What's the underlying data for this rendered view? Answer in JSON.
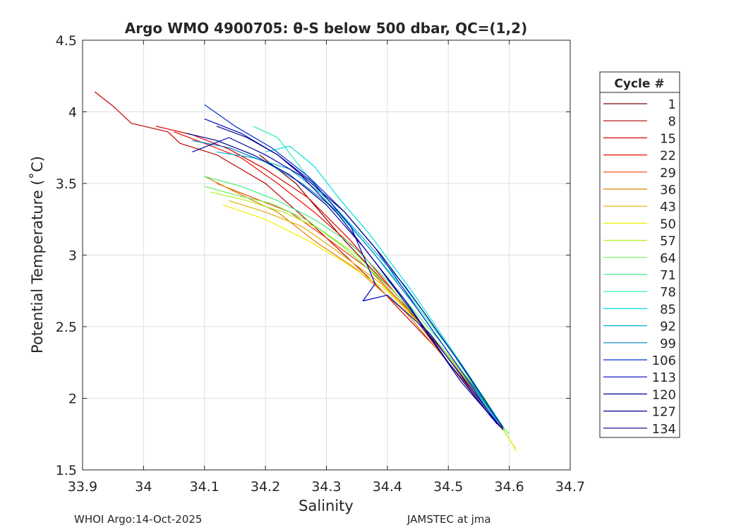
{
  "chart_data": {
    "type": "line",
    "title": "Argo WMO 4900705: θ-S below 500 dbar,  QC=(1,2)",
    "xlabel": "Salinity",
    "ylabel": "Potential Temperature (˚C)",
    "xlim": [
      33.9,
      34.7
    ],
    "ylim": [
      1.5,
      4.5
    ],
    "xticks": [
      33.9,
      34.0,
      34.1,
      34.2,
      34.3,
      34.4,
      34.5,
      34.6,
      34.7
    ],
    "xtick_labels": [
      "33.9",
      "34",
      "34.1",
      "34.2",
      "34.3",
      "34.4",
      "34.5",
      "34.6",
      "34.7"
    ],
    "yticks": [
      1.5,
      2.0,
      2.5,
      3.0,
      3.5,
      4.0,
      4.5
    ],
    "ytick_labels": [
      "1.5",
      "2",
      "2.5",
      "3",
      "3.5",
      "4",
      "4.5"
    ],
    "grid": true,
    "legend_title": "Cycle #",
    "legend_position": "right",
    "legend": [
      {
        "label": "1",
        "color": "#800000"
      },
      {
        "label": "8",
        "color": "#b00000"
      },
      {
        "label": "15",
        "color": "#e00000"
      },
      {
        "label": "22",
        "color": "#f01000"
      },
      {
        "label": "29",
        "color": "#f04000"
      },
      {
        "label": "36",
        "color": "#e08000"
      },
      {
        "label": "43",
        "color": "#e0b000"
      },
      {
        "label": "50",
        "color": "#f0f000"
      },
      {
        "label": "57",
        "color": "#b0f020"
      },
      {
        "label": "64",
        "color": "#70f050"
      },
      {
        "label": "71",
        "color": "#40f080"
      },
      {
        "label": "78",
        "color": "#20f0b0"
      },
      {
        "label": "85",
        "color": "#00e0e0"
      },
      {
        "label": "92",
        "color": "#00b0e0"
      },
      {
        "label": "99",
        "color": "#0080c0"
      },
      {
        "label": "106",
        "color": "#0030d0"
      },
      {
        "label": "113",
        "color": "#0000c0"
      },
      {
        "label": "120",
        "color": "#0000a0"
      },
      {
        "label": "127",
        "color": "#000090"
      },
      {
        "label": "134",
        "color": "#000080"
      }
    ],
    "series": [
      {
        "name": "1",
        "color": "#800000",
        "x": [
          34.19,
          34.25,
          34.33,
          34.42,
          34.5,
          34.57,
          34.59
        ],
        "y": [
          3.7,
          3.5,
          3.1,
          2.7,
          2.25,
          1.87,
          1.78
        ]
      },
      {
        "name": "8",
        "color": "#c00000",
        "x": [
          33.92,
          33.95,
          33.98,
          34.04,
          34.06,
          34.12,
          34.2,
          34.28,
          34.38,
          34.48,
          34.56
        ],
        "y": [
          4.14,
          4.04,
          3.92,
          3.86,
          3.78,
          3.7,
          3.5,
          3.2,
          2.8,
          2.35,
          1.95
        ]
      },
      {
        "name": "15",
        "color": "#e00000",
        "x": [
          34.02,
          34.08,
          34.14,
          34.2,
          34.27,
          34.34,
          34.42,
          34.5,
          34.57
        ],
        "y": [
          3.9,
          3.84,
          3.74,
          3.6,
          3.4,
          3.1,
          2.7,
          2.28,
          1.9
        ]
      },
      {
        "name": "22",
        "color": "#f01000",
        "x": [
          34.05,
          34.1,
          34.16,
          34.22,
          34.28,
          34.36,
          34.44,
          34.52,
          34.58
        ],
        "y": [
          3.86,
          3.78,
          3.68,
          3.5,
          3.3,
          3.0,
          2.6,
          2.2,
          1.85
        ]
      },
      {
        "name": "29",
        "color": "#f04000",
        "x": [
          34.12,
          34.18,
          34.24,
          34.3,
          34.37,
          34.45,
          34.53,
          34.59
        ],
        "y": [
          3.5,
          3.4,
          3.3,
          3.12,
          2.9,
          2.55,
          2.15,
          1.8
        ]
      },
      {
        "name": "36",
        "color": "#e08000",
        "x": [
          34.1,
          34.16,
          34.22,
          34.28,
          34.35,
          34.43,
          34.51,
          34.58
        ],
        "y": [
          3.55,
          3.42,
          3.3,
          3.1,
          2.9,
          2.6,
          2.2,
          1.82
        ]
      },
      {
        "name": "43",
        "color": "#e0b000",
        "x": [
          34.14,
          34.2,
          34.26,
          34.32,
          34.39,
          34.47,
          34.55,
          34.61
        ],
        "y": [
          3.38,
          3.3,
          3.2,
          3.02,
          2.8,
          2.45,
          2.05,
          1.65
        ]
      },
      {
        "name": "50",
        "color": "#f0f000",
        "x": [
          34.13,
          34.2,
          34.27,
          34.33,
          34.4,
          34.48,
          34.56,
          34.612
        ],
        "y": [
          3.35,
          3.25,
          3.1,
          2.95,
          2.75,
          2.4,
          2.0,
          1.63
        ]
      },
      {
        "name": "57",
        "color": "#b0f020",
        "x": [
          34.11,
          34.17,
          34.23,
          34.29,
          34.35,
          34.42,
          34.5,
          34.58,
          34.6
        ],
        "y": [
          3.44,
          3.38,
          3.3,
          3.18,
          3.0,
          2.7,
          2.3,
          1.85,
          1.72
        ]
      },
      {
        "name": "64",
        "color": "#70f050",
        "x": [
          34.1,
          34.15,
          34.21,
          34.27,
          34.33,
          34.41,
          34.49,
          34.57,
          34.6
        ],
        "y": [
          3.48,
          3.42,
          3.36,
          3.24,
          3.05,
          2.75,
          2.35,
          1.9,
          1.75
        ]
      },
      {
        "name": "71",
        "color": "#40f080",
        "x": [
          34.1,
          34.16,
          34.22,
          34.28,
          34.34,
          34.41,
          34.49,
          34.57
        ],
        "y": [
          3.55,
          3.48,
          3.38,
          3.25,
          3.08,
          2.78,
          2.38,
          1.9
        ]
      },
      {
        "name": "78",
        "color": "#20f0b0",
        "x": [
          34.18,
          34.22,
          34.26,
          34.3,
          34.36,
          34.43,
          34.51,
          34.58
        ],
        "y": [
          3.9,
          3.82,
          3.6,
          3.38,
          3.1,
          2.75,
          2.3,
          1.85
        ]
      },
      {
        "name": "85",
        "color": "#00e0e0",
        "x": [
          34.2,
          34.24,
          34.28,
          34.32,
          34.37,
          34.44,
          34.52,
          34.59
        ],
        "y": [
          3.72,
          3.76,
          3.62,
          3.4,
          3.15,
          2.75,
          2.25,
          1.8
        ]
      },
      {
        "name": "92",
        "color": "#00b0e0",
        "x": [
          34.12,
          34.18,
          34.24,
          34.3,
          34.36,
          34.43,
          34.51,
          34.58
        ],
        "y": [
          3.72,
          3.68,
          3.6,
          3.4,
          3.12,
          2.78,
          2.3,
          1.84
        ]
      },
      {
        "name": "99",
        "color": "#0080c0",
        "x": [
          34.08,
          34.14,
          34.2,
          34.26,
          34.32,
          34.38,
          34.45,
          34.52,
          34.59
        ],
        "y": [
          3.8,
          3.75,
          3.65,
          3.5,
          3.3,
          3.0,
          2.62,
          2.2,
          1.8
        ]
      },
      {
        "name": "106",
        "color": "#0030d0",
        "x": [
          34.1,
          34.15,
          34.21,
          34.27,
          34.33,
          34.38,
          34.45,
          34.52,
          34.58
        ],
        "y": [
          4.05,
          3.9,
          3.75,
          3.55,
          3.3,
          3.05,
          2.62,
          2.2,
          1.82
        ]
      },
      {
        "name": "113",
        "color": "#0000c0",
        "x": [
          34.1,
          34.16,
          34.22,
          34.28,
          34.34,
          34.38,
          34.36,
          34.4,
          34.47,
          34.54,
          34.59
        ],
        "y": [
          3.95,
          3.85,
          3.7,
          3.5,
          3.2,
          2.8,
          2.68,
          2.72,
          2.45,
          2.05,
          1.78
        ]
      },
      {
        "name": "120",
        "color": "#0000a0",
        "x": [
          34.08,
          34.14,
          34.2,
          34.26,
          34.32,
          34.38,
          34.45,
          34.52,
          34.585
        ],
        "y": [
          3.72,
          3.82,
          3.7,
          3.55,
          3.28,
          2.95,
          2.55,
          2.12,
          1.8
        ]
      },
      {
        "name": "127",
        "color": "#000090",
        "x": [
          34.07,
          34.12,
          34.18,
          34.24,
          34.3,
          34.36,
          34.43,
          34.5,
          34.58
        ],
        "y": [
          3.85,
          3.8,
          3.7,
          3.56,
          3.35,
          3.06,
          2.68,
          2.25,
          1.82
        ]
      },
      {
        "name": "134",
        "color": "#000080",
        "x": [
          34.12,
          34.17,
          34.22,
          34.27,
          34.33,
          34.39,
          34.46,
          34.53,
          34.59
        ],
        "y": [
          3.9,
          3.82,
          3.7,
          3.52,
          3.3,
          3.0,
          2.6,
          2.18,
          1.79
        ]
      }
    ]
  },
  "footer": {
    "left": "WHOI Argo:14-Oct-2025",
    "right": "JAMSTEC at jma"
  }
}
